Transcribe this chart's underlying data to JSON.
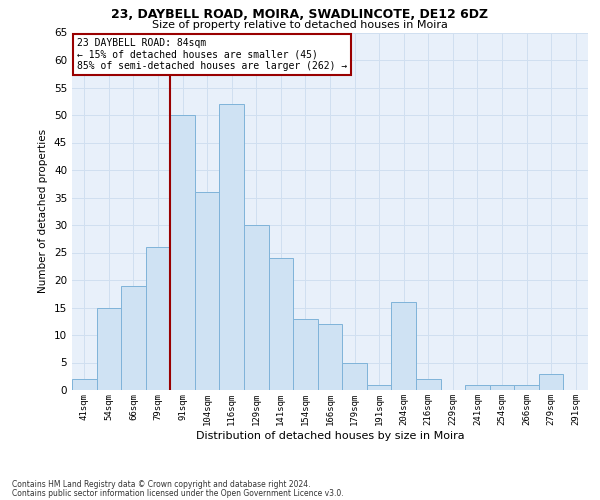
{
  "title1": "23, DAYBELL ROAD, MOIRA, SWADLINCOTE, DE12 6DZ",
  "title2": "Size of property relative to detached houses in Moira",
  "xlabel": "Distribution of detached houses by size in Moira",
  "ylabel": "Number of detached properties",
  "footer1": "Contains HM Land Registry data © Crown copyright and database right 2024.",
  "footer2": "Contains public sector information licensed under the Open Government Licence v3.0.",
  "bar_labels": [
    "41sqm",
    "54sqm",
    "66sqm",
    "79sqm",
    "91sqm",
    "104sqm",
    "116sqm",
    "129sqm",
    "141sqm",
    "154sqm",
    "166sqm",
    "179sqm",
    "191sqm",
    "204sqm",
    "216sqm",
    "229sqm",
    "241sqm",
    "254sqm",
    "266sqm",
    "279sqm",
    "291sqm"
  ],
  "bar_values": [
    2,
    15,
    19,
    26,
    50,
    36,
    52,
    30,
    24,
    13,
    12,
    5,
    1,
    16,
    2,
    0,
    1,
    1,
    1,
    3,
    0
  ],
  "bar_color": "#cfe2f3",
  "bar_edge_color": "#7fb3d9",
  "vline_x": 3.5,
  "vline_color": "#990000",
  "ylim": [
    0,
    65
  ],
  "yticks": [
    0,
    5,
    10,
    15,
    20,
    25,
    30,
    35,
    40,
    45,
    50,
    55,
    60,
    65
  ],
  "annotation_title": "23 DAYBELL ROAD: 84sqm",
  "annotation_line1": "← 15% of detached houses are smaller (45)",
  "annotation_line2": "85% of semi-detached houses are larger (262) →",
  "annotation_box_color": "#ffffff",
  "annotation_box_edge": "#990000",
  "grid_color": "#d0dff0",
  "bg_color": "#e8f0fa"
}
